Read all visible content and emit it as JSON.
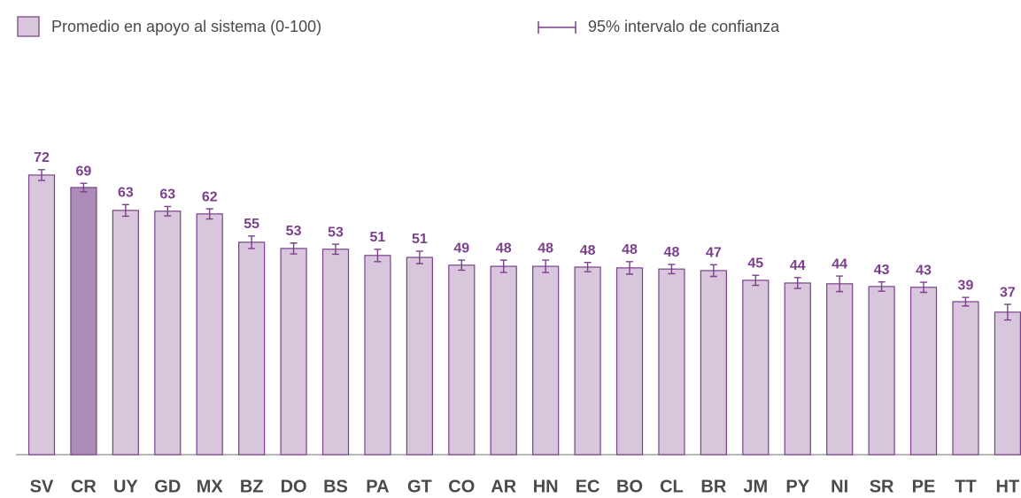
{
  "chart_data": {
    "type": "bar",
    "legend_label": "Promedio en apoyo al sistema (0-100)",
    "ci_label": "95% intervalo de confianza",
    "categories": [
      "SV",
      "CR",
      "UY",
      "GD",
      "MX",
      "BZ",
      "DO",
      "BS",
      "PA",
      "GT",
      "CO",
      "AR",
      "HN",
      "EC",
      "BO",
      "CL",
      "BR",
      "JM",
      "PY",
      "NI",
      "SR",
      "PE",
      "TT",
      "HT"
    ],
    "values": [
      72.0,
      68.8,
      62.9,
      62.7,
      62.0,
      54.7,
      53.1,
      52.9,
      51.3,
      50.8,
      48.8,
      48.5,
      48.5,
      48.3,
      48.1,
      47.8,
      47.4,
      44.9,
      44.2,
      44.0,
      43.3,
      43.1,
      39.4,
      36.7
    ],
    "value_labels": [
      "72",
      "69",
      "63",
      "63",
      "62",
      "55",
      "53",
      "53",
      "51",
      "51",
      "49",
      "48",
      "48",
      "48",
      "48",
      "48",
      "47",
      "45",
      "44",
      "44",
      "43",
      "43",
      "39",
      "37"
    ],
    "errors": [
      1.4,
      1.1,
      1.5,
      1.2,
      1.3,
      1.6,
      1.4,
      1.3,
      1.6,
      1.6,
      1.3,
      1.6,
      1.6,
      1.2,
      1.6,
      1.2,
      1.5,
      1.3,
      1.4,
      2.0,
      1.2,
      1.3,
      1.1,
      2.0
    ],
    "colors": [
      "#d8c6dc",
      "#ab8db7",
      "#d8c6dc",
      "#d8c6dc",
      "#d8c6dc",
      "#d8c6dc",
      "#d8c6dc",
      "#d8c6dc",
      "#d8c6dc",
      "#d8c6dc",
      "#d8c6dc",
      "#d8c6dc",
      "#d8c6dc",
      "#d8c6dc",
      "#d8c6dc",
      "#d8c6dc",
      "#d8c6dc",
      "#d8c6dc",
      "#d8c6dc",
      "#d8c6dc",
      "#d8c6dc",
      "#d8c6dc",
      "#d8c6dc",
      "#d8c6dc"
    ],
    "edge_color": "#7b3f8c",
    "ylim": [
      0,
      100
    ]
  }
}
